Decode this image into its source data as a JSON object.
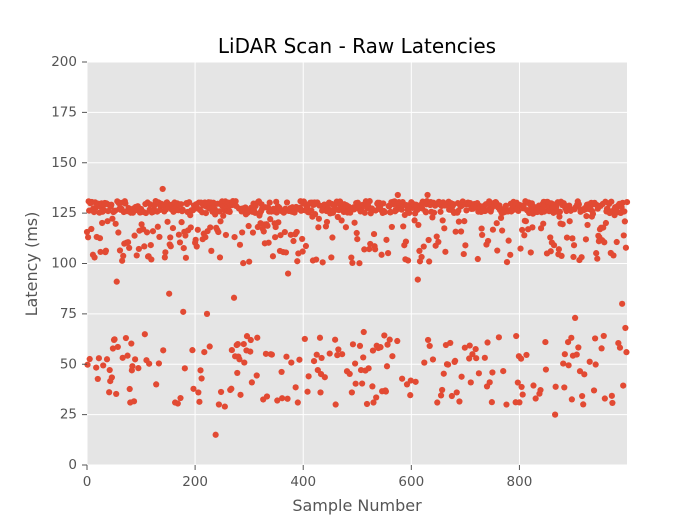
{
  "chart_data": {
    "type": "scatter",
    "title": "LiDAR Scan - Raw Latencies",
    "xlabel": "Sample Number",
    "ylabel": "Latency (ms)",
    "xlim": [
      0,
      999
    ],
    "ylim": [
      0,
      200
    ],
    "x_ticks": [
      0,
      200,
      400,
      600,
      800
    ],
    "y_ticks": [
      0,
      25,
      50,
      75,
      100,
      125,
      150,
      175,
      200
    ],
    "grid": true,
    "legend": "none",
    "background": "#e5e5e5",
    "point_color": "#e24a33",
    "num_points": 1000,
    "distribution_summary": {
      "dense_band_ms": [
        125,
        131
      ],
      "band_share": 0.6,
      "upper_range_ms": [
        100,
        125
      ],
      "lower_range_ms": [
        30,
        65
      ],
      "sparse_outliers_ms": [
        15,
        138
      ]
    },
    "points": [
      [
        2,
        113
      ],
      [
        38,
        121
      ],
      [
        55,
        91
      ],
      [
        72,
        63
      ],
      [
        80,
        31
      ],
      [
        92,
        104
      ],
      [
        110,
        52
      ],
      [
        128,
        40
      ],
      [
        140,
        137
      ],
      [
        152,
        85
      ],
      [
        163,
        31
      ],
      [
        178,
        76
      ],
      [
        195,
        57
      ],
      [
        206,
        36
      ],
      [
        222,
        75
      ],
      [
        238,
        15
      ],
      [
        246,
        103
      ],
      [
        255,
        29
      ],
      [
        272,
        83
      ],
      [
        290,
        60
      ],
      [
        305,
        41
      ],
      [
        321,
        120
      ],
      [
        333,
        34
      ],
      [
        352,
        32
      ],
      [
        372,
        95
      ],
      [
        390,
        31
      ],
      [
        410,
        44
      ],
      [
        432,
        36
      ],
      [
        452,
        103
      ],
      [
        472,
        55
      ],
      [
        490,
        36
      ],
      [
        512,
        66
      ],
      [
        530,
        31
      ],
      [
        552,
        37
      ],
      [
        575,
        134
      ],
      [
        592,
        40
      ],
      [
        612,
        92
      ],
      [
        630,
        134
      ],
      [
        648,
        31
      ],
      [
        666,
        50
      ],
      [
        684,
        36
      ],
      [
        700,
        109
      ],
      [
        720,
        53
      ],
      [
        740,
        39
      ],
      [
        758,
        120
      ],
      [
        776,
        30
      ],
      [
        794,
        64
      ],
      [
        812,
        121
      ],
      [
        830,
        33
      ],
      [
        848,
        61
      ],
      [
        866,
        25
      ],
      [
        884,
        55
      ],
      [
        903,
        73
      ],
      [
        920,
        45
      ],
      [
        938,
        37
      ],
      [
        958,
        33
      ],
      [
        976,
        124
      ],
      [
        990,
        80
      ],
      [
        996,
        68
      ],
      [
        998,
        56
      ]
    ]
  }
}
